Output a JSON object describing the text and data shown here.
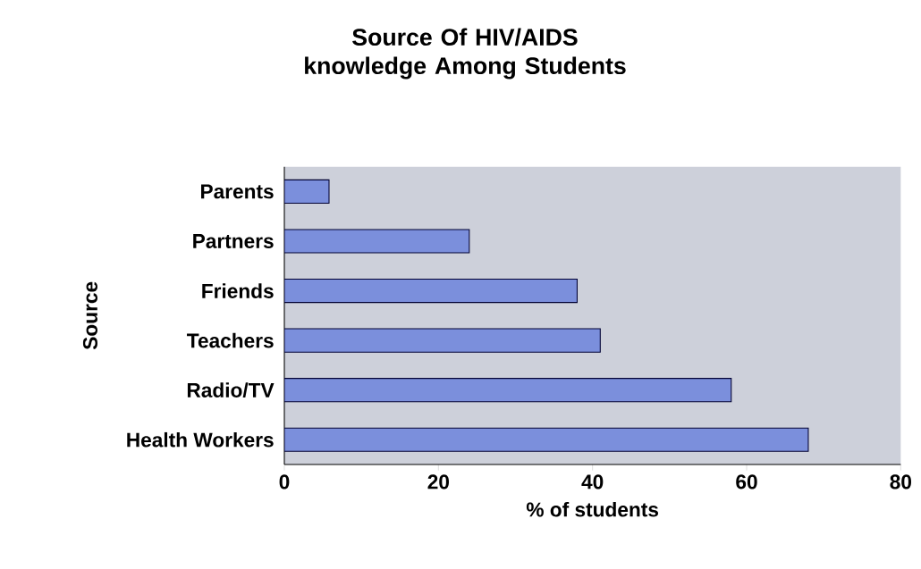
{
  "chart_data": {
    "type": "bar",
    "orientation": "horizontal",
    "title": "Source Of HIV/AIDS knowledge Among Students",
    "xlabel": "% of students",
    "ylabel": "Source",
    "categories": [
      "Parents",
      "Partners",
      "Friends",
      "Teachers",
      "Radio/TV",
      "Health Workers"
    ],
    "values": [
      5.8,
      24,
      38,
      41,
      58,
      68
    ],
    "color": "#7b8fdc",
    "xlim": [
      0,
      80
    ],
    "xticks": [
      0,
      20,
      40,
      60,
      80
    ],
    "grid": false
  }
}
